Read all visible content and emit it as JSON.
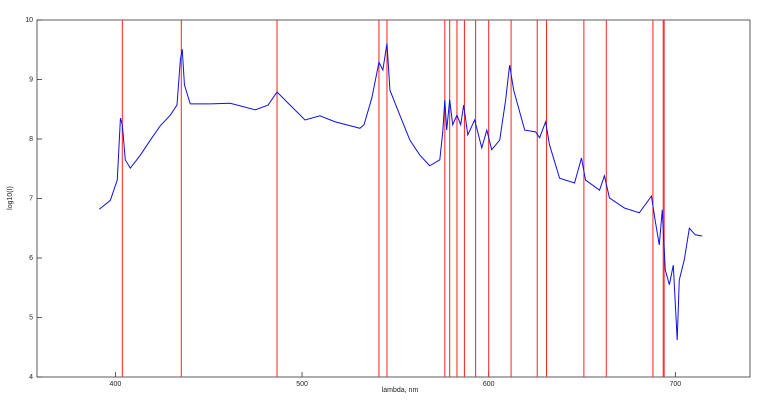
{
  "chart_data": {
    "type": "line",
    "x_label": "lambda, nm",
    "y_label": "log10(I)",
    "xlim": [
      358,
      740
    ],
    "ylim": [
      4,
      10
    ],
    "xticks": [
      400,
      500,
      600,
      700
    ],
    "yticks": [
      4,
      5,
      6,
      7,
      8,
      9,
      10
    ],
    "grid": false,
    "vlines": [
      403.7,
      435.3,
      486.6,
      541.2,
      545.5,
      576.5,
      579.1,
      583,
      587,
      593,
      600,
      612,
      626,
      631,
      651,
      663,
      688,
      693.5,
      694
    ],
    "vline_color": "#ff2020",
    "series": [
      {
        "color": "#1010e0",
        "x": [
          391.4,
          397.3,
          401,
          402.7,
          403.7,
          405.3,
          408,
          413.4,
          418.7,
          424,
          429.4,
          433,
          434.8,
          435.8,
          437,
          440.1,
          450.8,
          461.5,
          474.9,
          481.8,
          486.6,
          493.6,
          501.6,
          509.6,
          517.6,
          531,
          533.2,
          537.4,
          541.2,
          543.3,
          545.5,
          547.1,
          552.4,
          557.8,
          563.1,
          568.4,
          573.8,
          575.4,
          576.5,
          577.5,
          579.1,
          580.7,
          583,
          585,
          586.6,
          588.8,
          592.5,
          596.3,
          599,
          601.6,
          605.9,
          609.1,
          611.2,
          613.4,
          619.3,
          625.1,
          627.3,
          630.5,
          632.6,
          638,
          646,
          649.7,
          651.9,
          659.4,
          662,
          664.7,
          672.7,
          680.7,
          687.2,
          689.3,
          691.4,
          693,
          694.6,
          696.8,
          698.9,
          701,
          702.1,
          704.8,
          707.5,
          710.7,
          714.4
        ],
        "values": [
          6.82,
          6.97,
          7.31,
          8.35,
          8.24,
          7.65,
          7.51,
          7.73,
          7.98,
          8.22,
          8.4,
          8.57,
          9.33,
          9.51,
          8.91,
          8.59,
          8.59,
          8.6,
          8.49,
          8.57,
          8.79,
          8.57,
          8.32,
          8.39,
          8.29,
          8.18,
          8.24,
          8.69,
          9.29,
          9.16,
          9.61,
          8.82,
          8.4,
          7.98,
          7.73,
          7.55,
          7.65,
          8.12,
          8.66,
          8.15,
          8.66,
          8.24,
          8.4,
          8.24,
          8.57,
          8.07,
          8.32,
          7.85,
          8.15,
          7.82,
          7.98,
          8.66,
          9.24,
          8.82,
          8.15,
          8.12,
          8.02,
          8.29,
          7.9,
          7.34,
          7.26,
          7.68,
          7.31,
          7.14,
          7.38,
          7.01,
          6.84,
          6.76,
          7.04,
          6.61,
          6.22,
          6.81,
          5.8,
          5.55,
          5.88,
          4.62,
          5.63,
          5.97,
          6.5,
          6.39,
          6.37
        ]
      }
    ]
  }
}
